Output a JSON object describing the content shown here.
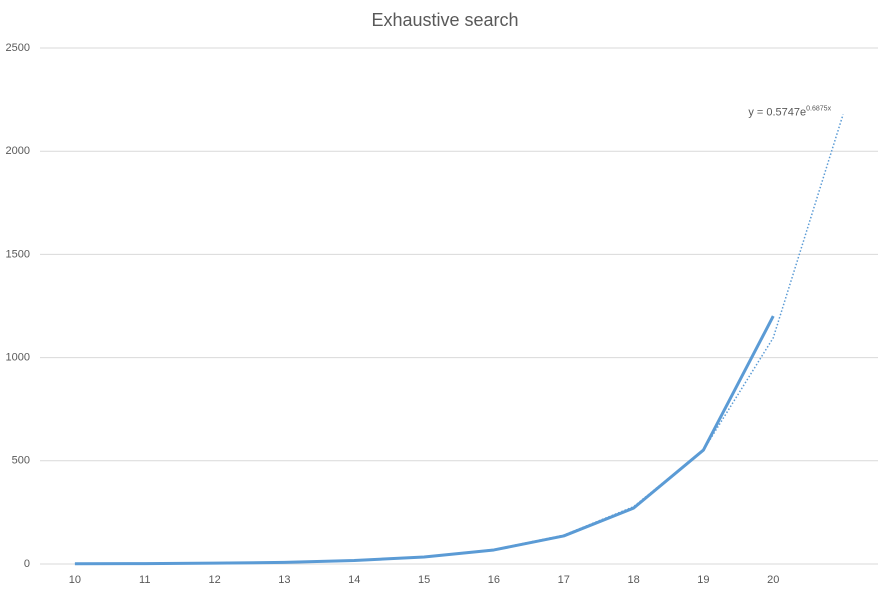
{
  "chart_data": {
    "type": "line",
    "title": "Exhaustive search",
    "categories": [
      "10",
      "11",
      "12",
      "13",
      "14",
      "15",
      "16",
      "17",
      "18",
      "19",
      "20",
      null
    ],
    "series": [
      {
        "color": "#5b9bd5",
        "values": [
          1,
          2,
          4,
          8,
          17,
          34,
          68,
          136,
          271,
          552,
          1201,
          null
        ]
      }
    ],
    "trendline": {
      "color": "#5b9bd5",
      "values": [
        1.14,
        2.27,
        4.51,
        8.96,
        17.8,
        35.4,
        70.3,
        139.7,
        277.6,
        551.6,
        1096,
        2178
      ],
      "equation": "y = 0.5747e",
      "exponent": "0.6875x"
    },
    "ylim": [
      0,
      2500
    ],
    "yticks": [
      0,
      500,
      1000,
      1500,
      2000,
      2500
    ],
    "grid": true
  }
}
